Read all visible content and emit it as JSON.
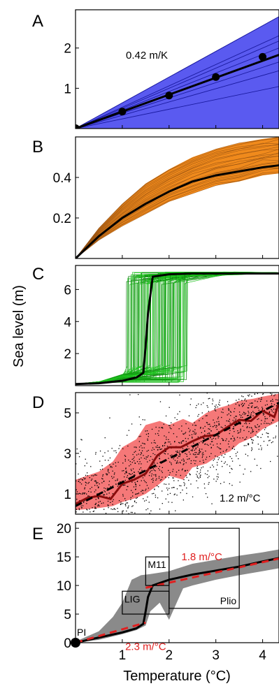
{
  "figure": {
    "ylabel": "Sea level (m)",
    "xlabel": "Temperature (°C)",
    "x_ticks": [
      "1",
      "2",
      "3",
      "4"
    ]
  },
  "chart_data": [
    {
      "panel": "A",
      "type": "line",
      "xlim": [
        0,
        4.35
      ],
      "ylim": [
        0,
        2.95
      ],
      "yticks": [
        "1",
        "2"
      ],
      "annotation": "0.42 m/K",
      "grid": false,
      "colors": {
        "band": "#5a5af0",
        "band_edge": "#1a1aa0",
        "mean": "#000000"
      },
      "band": {
        "x": [
          0,
          4.35
        ],
        "lower": [
          0,
          0
        ],
        "upper": [
          0,
          2.78
        ]
      },
      "ensemble_slopes": [
        0.24,
        0.33,
        0.38,
        0.46,
        0.5,
        0.53
      ],
      "mean_line": {
        "x": [
          0,
          4.35
        ],
        "y": [
          0,
          1.83
        ]
      },
      "markers": {
        "x": [
          0,
          1,
          2,
          3,
          4
        ],
        "y": [
          0,
          0.42,
          0.82,
          1.28,
          1.78
        ]
      }
    },
    {
      "panel": "B",
      "type": "line",
      "xlim": [
        0,
        4.35
      ],
      "ylim": [
        0,
        0.6
      ],
      "yticks": [
        "0.2",
        "0.4"
      ],
      "grid": false,
      "colors": {
        "band": "#f08a1c",
        "band_edge": "#8a4a10",
        "mean": "#000000"
      },
      "band_lower": {
        "x": [
          0,
          0.5,
          1,
          1.5,
          2,
          2.5,
          3,
          3.5,
          4,
          4.35
        ],
        "y": [
          0,
          0.09,
          0.16,
          0.22,
          0.28,
          0.32,
          0.36,
          0.38,
          0.41,
          0.42
        ]
      },
      "band_upper": {
        "x": [
          0,
          0.5,
          1,
          1.5,
          2,
          2.5,
          3,
          3.5,
          4,
          4.35
        ],
        "y": [
          0,
          0.15,
          0.27,
          0.37,
          0.44,
          0.5,
          0.54,
          0.57,
          0.59,
          0.6
        ]
      },
      "mean_line": {
        "x": [
          0,
          0.5,
          1,
          1.5,
          2,
          2.5,
          3,
          3.5,
          4,
          4.35
        ],
        "y": [
          0,
          0.11,
          0.2,
          0.27,
          0.33,
          0.38,
          0.41,
          0.43,
          0.45,
          0.46
        ]
      }
    },
    {
      "panel": "C",
      "type": "line",
      "xlim": [
        0,
        4.35
      ],
      "ylim": [
        0,
        7.5
      ],
      "yticks": [
        "2",
        "4",
        "6"
      ],
      "grid": false,
      "colors": {
        "ensemble": "#1ec21e",
        "ensemble_dark": "#0e7a0e",
        "mean": "#000000"
      },
      "ensemble_jump_range_x": [
        1.1,
        2.4
      ],
      "ensemble_low_level": [
        0.2,
        1.3
      ],
      "ensemble_high_level": [
        6.3,
        7.1
      ],
      "mean_line": {
        "x": [
          0,
          0.5,
          1,
          1.3,
          1.45,
          1.5,
          1.55,
          1.65,
          2,
          2.5,
          3,
          4.35
        ],
        "y": [
          0.1,
          0.15,
          0.3,
          0.5,
          0.8,
          2.5,
          4.5,
          6.8,
          6.95,
          7.0,
          7.0,
          7.0
        ]
      }
    },
    {
      "panel": "D",
      "type": "line",
      "xlim": [
        0,
        4.35
      ],
      "ylim": [
        0,
        6
      ],
      "yticks": [
        "1",
        "3",
        "5"
      ],
      "annotation": "1.2 m/°C",
      "grid": false,
      "colors": {
        "band": "#f57878",
        "mean": "#8a0d0d",
        "fit": "#000000",
        "dots": "#000000"
      },
      "band_lower": {
        "x": [
          0,
          0.5,
          0.8,
          1.0,
          1.3,
          1.5,
          1.8,
          2.0,
          2.3,
          2.5,
          2.8,
          3.0,
          3.3,
          3.5,
          3.8,
          4.0,
          4.35
        ],
        "y": [
          0.2,
          0.3,
          0.4,
          0.6,
          0.8,
          1.0,
          1.5,
          1.9,
          1.7,
          2.3,
          2.5,
          2.8,
          3.1,
          3.5,
          3.8,
          4.2,
          4.6
        ]
      },
      "band_upper": {
        "x": [
          0,
          0.5,
          0.8,
          1.0,
          1.3,
          1.5,
          1.8,
          2.0,
          2.3,
          2.5,
          2.8,
          3.0,
          3.3,
          3.5,
          3.8,
          4.0,
          4.35
        ],
        "y": [
          1.7,
          2.1,
          2.6,
          3.3,
          3.7,
          4.4,
          4.6,
          4.4,
          4.7,
          4.5,
          5.0,
          5.2,
          5.4,
          5.6,
          5.7,
          5.8,
          5.95
        ]
      },
      "mean_line": {
        "x": [
          0,
          0.25,
          0.5,
          0.75,
          1.0,
          1.25,
          1.5,
          1.75,
          2.0,
          2.25,
          2.5,
          2.75,
          3.0,
          3.25,
          3.5,
          3.75,
          4.0,
          4.25,
          4.35
        ],
        "y": [
          0.5,
          0.8,
          0.9,
          0.75,
          1.5,
          1.7,
          2.0,
          2.9,
          3.3,
          3.3,
          3.6,
          3.85,
          3.9,
          4.3,
          4.65,
          4.6,
          5.1,
          4.8,
          5.5
        ]
      },
      "fit_line": {
        "x": [
          0,
          4.35
        ],
        "y": [
          0.4,
          5.5
        ]
      }
    },
    {
      "panel": "E",
      "type": "line",
      "xlim": [
        0,
        4.35
      ],
      "ylim": [
        0,
        21
      ],
      "yticks": [
        "0",
        "5",
        "10",
        "15",
        "20"
      ],
      "grid": false,
      "colors": {
        "band": "#8a8a8a",
        "mean": "#000000",
        "fit": "#e02020",
        "label": "#e02020"
      },
      "band_lower": {
        "x": [
          0,
          0.5,
          1.0,
          1.3,
          1.5,
          1.6,
          1.8,
          2.0,
          2.3,
          2.5,
          3.0,
          3.5,
          4.0,
          4.35
        ],
        "y": [
          0,
          0.5,
          1.5,
          2.2,
          3.0,
          5.5,
          7.0,
          4.0,
          9.5,
          10.0,
          11.0,
          11.8,
          12.5,
          13.0
        ]
      },
      "band_upper": {
        "x": [
          0,
          0.5,
          0.8,
          1.0,
          1.2,
          1.4,
          1.6,
          2.0,
          2.5,
          3.0,
          3.5,
          4.0,
          4.35
        ],
        "y": [
          0.2,
          2.0,
          4.5,
          7.0,
          11.0,
          11.8,
          12.0,
          12.5,
          13.8,
          14.5,
          15.2,
          15.8,
          16.3
        ]
      },
      "mean_line": {
        "x": [
          0,
          0.5,
          1.0,
          1.3,
          1.45,
          1.5,
          1.55,
          1.65,
          2.0,
          2.5,
          3.0,
          3.5,
          4.0,
          4.35
        ],
        "y": [
          0,
          0.9,
          1.8,
          2.5,
          3.3,
          5.5,
          8.0,
          10.0,
          11.0,
          11.9,
          12.6,
          13.3,
          14.2,
          14.8
        ]
      },
      "fit_low": {
        "x": [
          0,
          1.5
        ],
        "y": [
          0,
          3.5
        ],
        "label": "2.3 m/°C"
      },
      "fit_high": {
        "x": [
          1.5,
          4.35
        ],
        "y": [
          9.6,
          14.7
        ],
        "label": "1.8 m/°C"
      },
      "boxes": [
        {
          "label": "PI",
          "x": [
            0,
            0
          ],
          "y": [
            0,
            0
          ]
        },
        {
          "label": "LIG",
          "x": [
            1.0,
            2.0
          ],
          "y": [
            5.0,
            9.0
          ]
        },
        {
          "label": "M11",
          "x": [
            1.5,
            2.0
          ],
          "y": [
            10.0,
            15.0
          ]
        },
        {
          "label": "Plio",
          "x": [
            2.0,
            3.5
          ],
          "y": [
            6.0,
            20.0
          ]
        }
      ],
      "origin_marker": {
        "x": 0,
        "y": 0
      }
    }
  ]
}
